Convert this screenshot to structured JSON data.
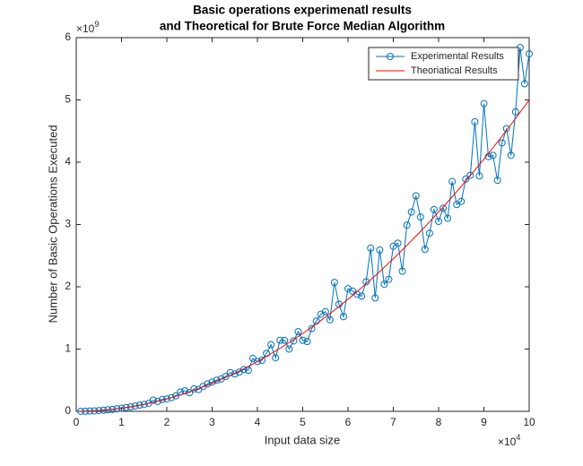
{
  "chart_data": {
    "type": "line",
    "title": [
      "Basic operations experimenatl results",
      "and Theoretical for Brute Force Median Algorithm"
    ],
    "xlabel": "Input data size",
    "ylabel": "Number of Basic Operations Executed",
    "x_exponent": {
      "base": "×10",
      "power": "4"
    },
    "y_exponent": {
      "base": "×10",
      "power": "9"
    },
    "xlim": [
      0,
      100000
    ],
    "ylim": [
      0,
      6000000000.0
    ],
    "xticks": [
      0,
      {
        "value": 10000,
        "label": "1"
      },
      {
        "value": 20000,
        "label": "2"
      },
      {
        "value": 30000,
        "label": "3"
      },
      {
        "value": 40000,
        "label": "4"
      },
      {
        "value": 50000,
        "label": "5"
      },
      {
        "value": 60000,
        "label": "6"
      },
      {
        "value": 70000,
        "label": "7"
      },
      {
        "value": 80000,
        "label": "8"
      },
      {
        "value": 90000,
        "label": "9"
      },
      {
        "value": 100000,
        "label": "10"
      }
    ],
    "yticks": [
      0,
      {
        "value": 1000000000.0,
        "label": "1"
      },
      {
        "value": 2000000000.0,
        "label": "2"
      },
      {
        "value": 3000000000.0,
        "label": "3"
      },
      {
        "value": 4000000000.0,
        "label": "4"
      },
      {
        "value": 5000000000.0,
        "label": "5"
      },
      {
        "value": 6000000000.0,
        "label": "6"
      }
    ],
    "grid": false,
    "legend": "top-right",
    "x": [
      1000,
      2000,
      3000,
      4000,
      5000,
      6000,
      7000,
      8000,
      9000,
      10000,
      11000,
      12000,
      13000,
      14000,
      15000,
      16000,
      17000,
      18000,
      19000,
      20000,
      21000,
      22000,
      23000,
      24000,
      25000,
      26000,
      27000,
      28000,
      29000,
      30000,
      31000,
      32000,
      33000,
      34000,
      35000,
      36000,
      37000,
      38000,
      39000,
      40000,
      41000,
      42000,
      43000,
      44000,
      45000,
      46000,
      47000,
      48000,
      49000,
      50000,
      51000,
      52000,
      53000,
      54000,
      55000,
      56000,
      57000,
      58000,
      59000,
      60000,
      61000,
      62000,
      63000,
      64000,
      65000,
      66000,
      67000,
      68000,
      69000,
      70000,
      71000,
      72000,
      73000,
      74000,
      75000,
      76000,
      77000,
      78000,
      79000,
      80000,
      81000,
      82000,
      83000,
      84000,
      85000,
      86000,
      87000,
      88000,
      89000,
      90000,
      91000,
      92000,
      93000,
      94000,
      95000,
      96000,
      97000,
      98000,
      99000,
      100000
    ],
    "series": [
      {
        "name": "Experimental Results",
        "color": "#0072bd",
        "marker": "circle",
        "values": [
          600000.0,
          2000000.0,
          4500000.0,
          8000000.0,
          13000000.0,
          18000000.0,
          25000000.0,
          31000000.0,
          41000000.0,
          50000000.0,
          62000000.0,
          70000000.0,
          85000000.0,
          100000000.0,
          110000000.0,
          130000000.0,
          180000000.0,
          160000000.0,
          190000000.0,
          200000000.0,
          220000000.0,
          250000000.0,
          310000000.0,
          330000000.0,
          300000000.0,
          360000000.0,
          350000000.0,
          400000000.0,
          440000000.0,
          470000000.0,
          500000000.0,
          520000000.0,
          560000000.0,
          620000000.0,
          600000000.0,
          630000000.0,
          670000000.0,
          660000000.0,
          850000000.0,
          800000000.0,
          820000000.0,
          930000000.0,
          1070000000.0,
          860000000.0,
          1140000000.0,
          1140000000.0,
          1000000000.0,
          1130000000.0,
          1280000000.0,
          1140000000.0,
          1120000000.0,
          1330000000.0,
          1450000000.0,
          1560000000.0,
          1600000000.0,
          1470000000.0,
          2070000000.0,
          1720000000.0,
          1520000000.0,
          1970000000.0,
          1930000000.0,
          1880000000.0,
          1850000000.0,
          2080000000.0,
          2620000000.0,
          1820000000.0,
          2590000000.0,
          2040000000.0,
          2120000000.0,
          2650000000.0,
          2700000000.0,
          2250000000.0,
          2990000000.0,
          3200000000.0,
          3460000000.0,
          3120000000.0,
          2600000000.0,
          2860000000.0,
          3240000000.0,
          3050000000.0,
          3260000000.0,
          3100000000.0,
          3690000000.0,
          3320000000.0,
          3370000000.0,
          3730000000.0,
          3790000000.0,
          4650000000.0,
          3780000000.0,
          4940000000.0,
          4090000000.0,
          4110000000.0,
          3710000000.0,
          4310000000.0,
          4540000000.0,
          4110000000.0,
          4810000000.0,
          5840000000.0,
          5260000000.0,
          5740000000.0
        ]
      },
      {
        "name": "Theoriatical Results",
        "color": "#ff0000",
        "values": [
          500000.0,
          2000000.0,
          4500000.0,
          8000000.0,
          12500000.0,
          18000000.0,
          24500000.0,
          32000000.0,
          40500000.0,
          50000000.0,
          60500000.0,
          72000000.0,
          84500000.0,
          98000000.0,
          112500000.0,
          128000000.0,
          144500000.0,
          162000000.0,
          180500000.0,
          200000000.0,
          220500000.0,
          242000000.0,
          264500000.0,
          288000000.0,
          312500000.0,
          338000000.0,
          364500000.0,
          392000000.0,
          420500000.0,
          450000000.0,
          480500000.0,
          512000000.0,
          544500000.0,
          578000000.0,
          612500000.0,
          648000000.0,
          684500000.0,
          722000000.0,
          760500000.0,
          800000000.0,
          840500000.0,
          882000000.0,
          924500000.0,
          968000000.0,
          1012500000.0,
          1058000000.0,
          1104500000.0,
          1152000000.0,
          1200500000.0,
          1250000000.0,
          1300500000.0,
          1352000000.0,
          1404500000.0,
          1458000000.0,
          1512500000.0,
          1568000000.0,
          1624500000.0,
          1682000000.0,
          1740500000.0,
          1800000000.0,
          1860500000.0,
          1922000000.0,
          1984500000.0,
          2048000000.0,
          2112500000.0,
          2178000000.0,
          2244500000.0,
          2312000000.0,
          2380500000.0,
          2450000000.0,
          2520500000.0,
          2592000000.0,
          2664500000.0,
          2738000000.0,
          2812500000.0,
          2888000000.0,
          2964500000.0,
          3042000000.0,
          3120500000.0,
          3200000000.0,
          3280500000.0,
          3362000000.0,
          3444500000.0,
          3528000000.0,
          3612500000.0,
          3698000000.0,
          3784500000.0,
          3872000000.0,
          3960500000.0,
          4050000000.0,
          4140500000.0,
          4232000000.0,
          4324500000.0,
          4418000000.0,
          4512500000.0,
          4608000000.0,
          4704500000.0,
          4802000000.0,
          4900500000.0,
          5000000000.0
        ]
      }
    ]
  }
}
